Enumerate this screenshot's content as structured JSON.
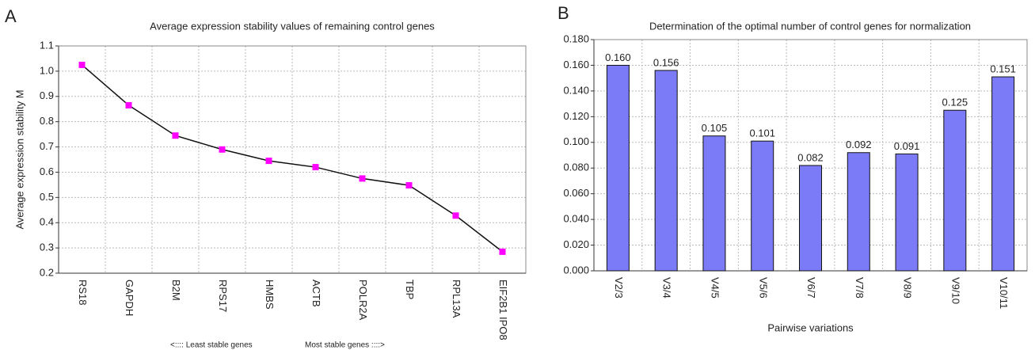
{
  "chart_data": [
    {
      "type": "line",
      "panel": "A",
      "title": "Average expression stability values of remaining control genes",
      "y_label": "Average expression stability M",
      "categories": [
        "RS18",
        "GAPDH",
        "B2M",
        "RPS17",
        "HMBS",
        "ACTB",
        "POLR2A",
        "TBP",
        "RPL13A",
        "EIF2B1 IPO8"
      ],
      "values": [
        1.025,
        0.865,
        0.745,
        0.69,
        0.645,
        0.62,
        0.575,
        0.548,
        0.428,
        0.285
      ],
      "color": "#ff00ff",
      "line_color": "#111111",
      "ylim": [
        0.2,
        1.1
      ],
      "yticks": [
        0.2,
        0.3,
        0.4,
        0.5,
        0.6,
        0.7,
        0.8,
        0.9,
        {
          "value": 1,
          "label": "1.0"
        },
        1.1
      ],
      "grid": true,
      "annotations": [
        "<:::: Least stable genes",
        "Most stable genes ::::>"
      ]
    },
    {
      "type": "bar",
      "panel": "B",
      "title": "Determination of the optimal number of control genes for normalization",
      "x_label": "Pairwise variations",
      "categories": [
        "V2/3",
        "V3/4",
        "V4/5",
        "V5/6",
        "V6/7",
        "V7/8",
        "V8/9",
        "V9/10",
        "V10/11"
      ],
      "values": [
        0.16,
        0.156,
        0.105,
        0.101,
        0.082,
        0.092,
        0.091,
        0.125,
        0.151
      ],
      "value_labels": [
        "0.160",
        "0.156",
        "0.105",
        "0.101",
        "0.082",
        "0.092",
        "0.091",
        "0.125",
        "0.151"
      ],
      "color": "#7b7bf7",
      "ylim": [
        0,
        0.18
      ],
      "yticks": [
        {
          "value": 0,
          "label": "0.000"
        },
        {
          "value": 0.02,
          "label": "0.020"
        },
        {
          "value": 0.04,
          "label": "0.040"
        },
        {
          "value": 0.06,
          "label": "0.060"
        },
        {
          "value": 0.08,
          "label": "0.080"
        },
        {
          "value": 0.1,
          "label": "0.100"
        },
        {
          "value": 0.12,
          "label": "0.120"
        },
        {
          "value": 0.14,
          "label": "0.140"
        },
        {
          "value": 0.16,
          "label": "0.160"
        },
        {
          "value": 0.18,
          "label": "0.180"
        }
      ],
      "grid": true
    }
  ]
}
